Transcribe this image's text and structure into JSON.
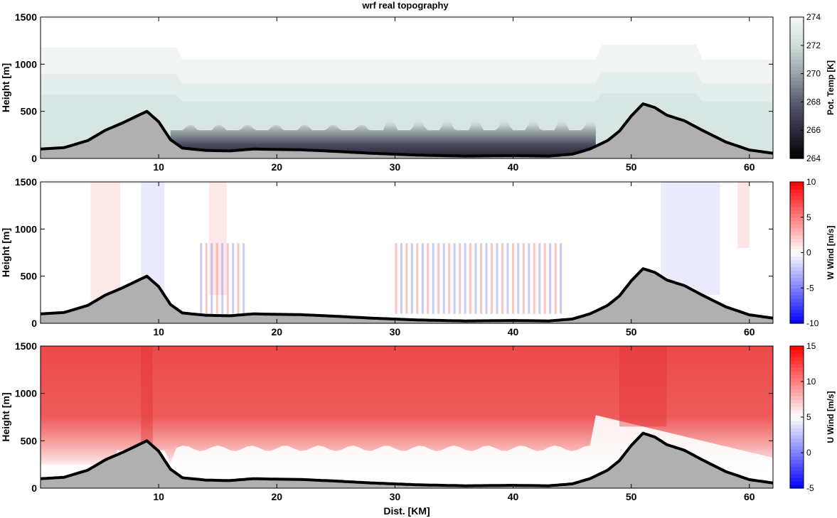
{
  "figure_title": "wrf real topography",
  "chart_data": [
    {
      "type": "heatmap",
      "title": "wrf real topography",
      "xlabel": "",
      "ylabel": "Height [m]",
      "xlim": [
        0,
        62
      ],
      "ylim": [
        0,
        1500
      ],
      "xticks": [
        10,
        20,
        30,
        40,
        50,
        60
      ],
      "yticks": [
        0,
        500,
        1000,
        1500
      ],
      "colorbar": {
        "label": "Pot. Temp [K]",
        "range": [
          264,
          274
        ],
        "ticks": [
          264,
          266,
          268,
          270,
          272,
          274
        ],
        "colormap": [
          "#000000",
          "#2b2b3d",
          "#5a5a6e",
          "#9aa3a8",
          "#cfdcd8",
          "#f2f7f6"
        ]
      },
      "terrain": {
        "x": [
          0,
          2,
          4,
          5.5,
          7,
          8,
          9,
          10,
          11,
          12,
          14,
          16,
          18,
          20,
          22,
          25,
          28,
          32,
          36,
          40,
          43,
          45,
          46.5,
          48,
          49,
          50,
          51,
          52,
          53,
          54.5,
          56,
          58,
          60,
          62
        ],
        "height": [
          100,
          115,
          190,
          300,
          380,
          440,
          500,
          390,
          200,
          110,
          85,
          80,
          100,
          95,
          92,
          75,
          55,
          35,
          25,
          30,
          25,
          45,
          100,
          190,
          290,
          450,
          580,
          540,
          460,
          400,
          300,
          175,
          90,
          55
        ],
        "fill": "#b0b0b0"
      }
    },
    {
      "type": "heatmap",
      "xlabel": "",
      "ylabel": "Height [m]",
      "xlim": [
        0,
        62
      ],
      "ylim": [
        0,
        1500
      ],
      "xticks": [
        10,
        20,
        30,
        40,
        50,
        60
      ],
      "yticks": [
        0,
        500,
        1000,
        1500
      ],
      "colorbar": {
        "label": "W Wind [m/s]",
        "range": [
          -10,
          10
        ],
        "ticks": [
          -10,
          -5,
          0,
          5,
          10
        ],
        "colormap": [
          "#0000ff",
          "#ffffff",
          "#ff0000"
        ]
      },
      "terrain": {
        "x": [
          0,
          2,
          4,
          5.5,
          7,
          8,
          9,
          10,
          11,
          12,
          14,
          16,
          18,
          20,
          22,
          25,
          28,
          32,
          36,
          40,
          43,
          45,
          46.5,
          48,
          49,
          50,
          51,
          52,
          53,
          54.5,
          56,
          58,
          60,
          62
        ],
        "height": [
          100,
          115,
          190,
          300,
          380,
          440,
          500,
          390,
          200,
          110,
          85,
          80,
          100,
          95,
          92,
          75,
          55,
          35,
          25,
          30,
          25,
          45,
          100,
          190,
          290,
          450,
          580,
          540,
          460,
          400,
          300,
          175,
          90,
          55
        ],
        "fill": "#b0b0b0"
      }
    },
    {
      "type": "heatmap",
      "xlabel": "Dist. [KM]",
      "ylabel": "Height [m]",
      "xlim": [
        0,
        62
      ],
      "ylim": [
        0,
        1500
      ],
      "xticks": [
        10,
        20,
        30,
        40,
        50,
        60
      ],
      "yticks": [
        0,
        500,
        1000,
        1500
      ],
      "colorbar": {
        "label": "U Wind [m/s]",
        "range": [
          -5,
          15
        ],
        "ticks": [
          -5,
          0,
          5,
          10,
          15
        ],
        "colormap": [
          "#0000ff",
          "#ffffff",
          "#ff0000"
        ]
      },
      "terrain": {
        "x": [
          0,
          2,
          4,
          5.5,
          7,
          8,
          9,
          10,
          11,
          12,
          14,
          16,
          18,
          20,
          22,
          25,
          28,
          32,
          36,
          40,
          43,
          45,
          46.5,
          48,
          49,
          50,
          51,
          52,
          53,
          54.5,
          56,
          58,
          60,
          62
        ],
        "height": [
          100,
          115,
          190,
          300,
          380,
          440,
          500,
          390,
          200,
          110,
          85,
          80,
          100,
          95,
          92,
          75,
          55,
          35,
          25,
          30,
          25,
          45,
          100,
          190,
          290,
          450,
          580,
          540,
          460,
          400,
          300,
          175,
          90,
          55
        ],
        "fill": "#b0b0b0"
      }
    }
  ]
}
